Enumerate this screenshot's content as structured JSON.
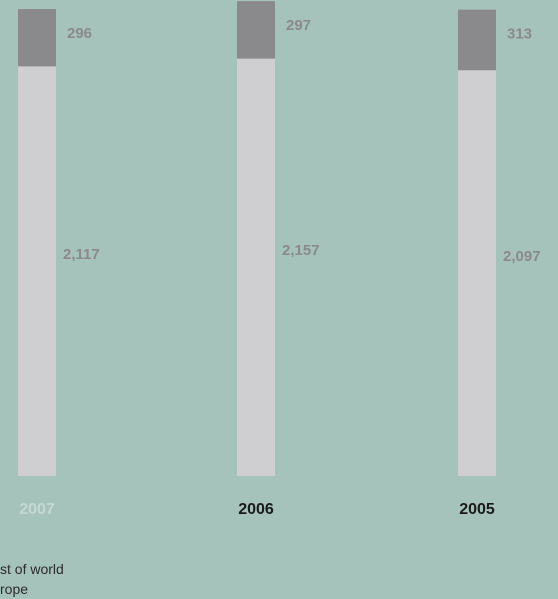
{
  "chart_data": {
    "type": "bar",
    "stacked": true,
    "categories": [
      "2007",
      "2006",
      "2005"
    ],
    "highlighted_category": "2007",
    "series": [
      {
        "name": "rope",
        "values": [
          2117,
          2157,
          2097
        ],
        "color": "#cfcfd1"
      },
      {
        "name": "st of world",
        "values": [
          296,
          297,
          313
        ],
        "color": "#8a8a8c"
      }
    ],
    "value_labels": {
      "rope": [
        "2,117",
        "2,157",
        "2,097"
      ],
      "st of world": [
        "296",
        "297",
        "313"
      ]
    },
    "colors": {
      "background": "#a6c3bb",
      "year_label": "#1a1a1a",
      "year_label_highlighted": "#c5d9d3",
      "value_label": "#8a8a8a"
    },
    "legend_labels": [
      "st of world",
      "rope"
    ]
  }
}
